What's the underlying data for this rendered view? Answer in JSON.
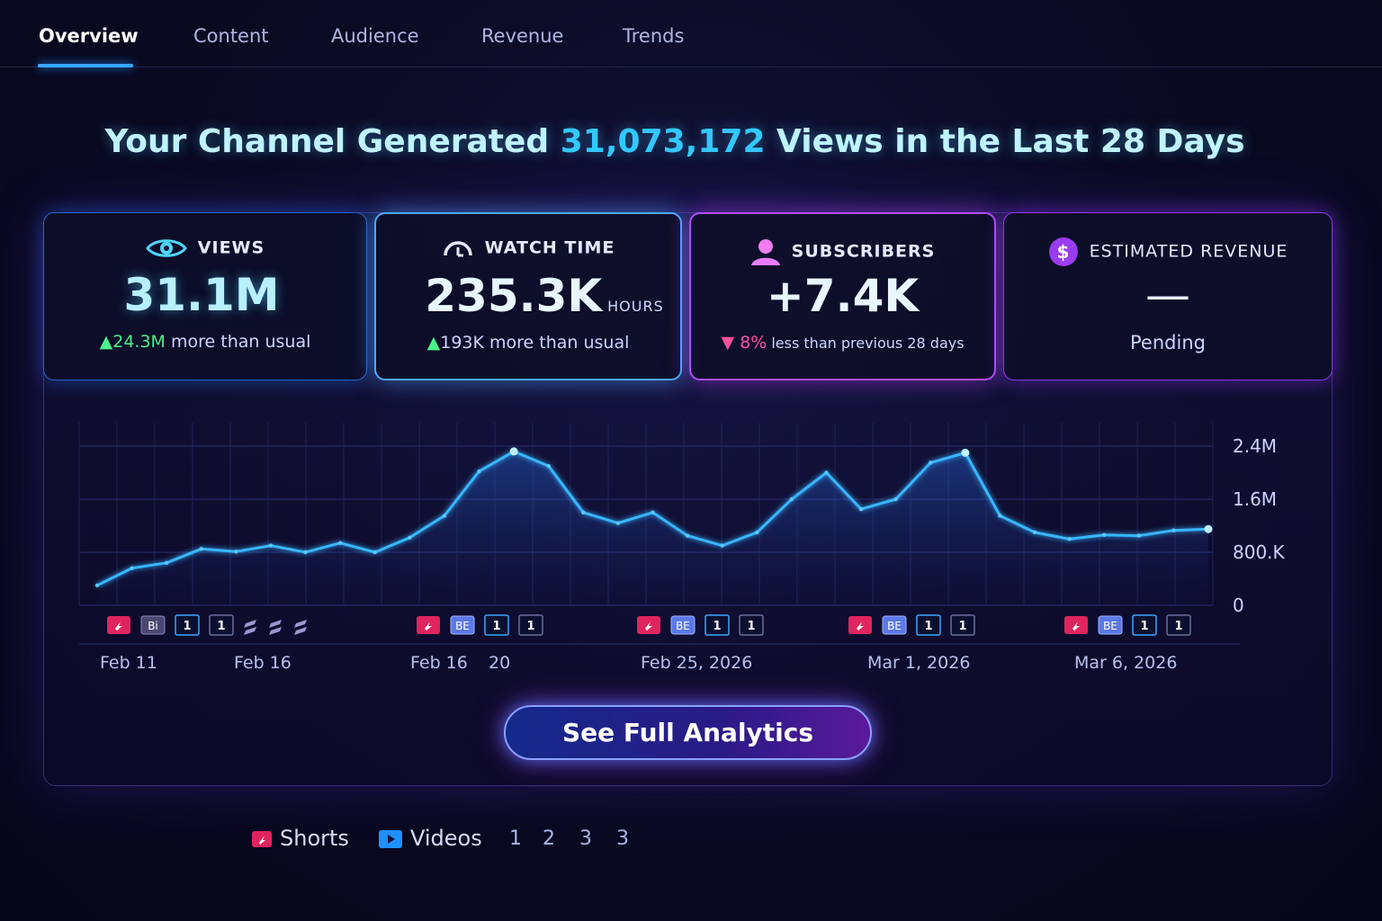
{
  "nav": {
    "tabs": [
      {
        "label": "Overview",
        "active": true
      },
      {
        "label": "Content",
        "active": false
      },
      {
        "label": "Audience",
        "active": false
      },
      {
        "label": "Revenue",
        "active": false
      },
      {
        "label": "Trends",
        "active": false
      }
    ]
  },
  "headline": {
    "prefix": "Your Channel Generated ",
    "views": "31,073,172",
    "suffix": " Views in the Last 28 Days"
  },
  "cards": {
    "views": {
      "icon": "eye-icon",
      "title": "VIEWS",
      "value": "31.1M",
      "delta_value": "24.3M",
      "delta_text": " more than usual",
      "delta_direction": "up"
    },
    "watch_time": {
      "icon": "gauge-icon",
      "title": "WATCH TIME",
      "value": "235.3K",
      "unit": "HOURS",
      "delta_value": "193K",
      "delta_text": " more than usual",
      "delta_direction": "up"
    },
    "subscribers": {
      "icon": "user-icon",
      "title": "SUBSCRIBERS",
      "value": "+7.4K",
      "delta_value": "8%",
      "delta_text": " less than previous 28 days",
      "delta_direction": "down"
    },
    "revenue": {
      "icon": "dollar-icon",
      "title": "ESTIMATED REVENUE",
      "value": "—",
      "status": "Pending"
    }
  },
  "chart_data": {
    "type": "line",
    "series": [
      {
        "name": "Views",
        "values": [
          300000,
          560000,
          640000,
          850000,
          810000,
          900000,
          800000,
          940000,
          800000,
          1020000,
          1350000,
          2020000,
          2320000,
          2100000,
          1400000,
          1240000,
          1400000,
          1050000,
          900000,
          1100000,
          1600000,
          2000000,
          1450000,
          1600000,
          2150000,
          2300000,
          1350000,
          1100000,
          1000000,
          1060000,
          1050000,
          1130000,
          1150000
        ]
      }
    ],
    "ylim": [
      0,
      2400000
    ],
    "yticks": [
      "2.4M",
      "1.6M",
      "800.K",
      "0"
    ],
    "ytick_values": [
      2400000,
      1600000,
      800000,
      0
    ],
    "xtick_labels": [
      "Feb 11",
      "Feb 16",
      "Feb 16",
      "20",
      "Feb 25, 2026",
      "Mar 1, 2026",
      "Mar 6, 2026"
    ],
    "grid": true,
    "upload_markers": [
      [
        "shorts",
        "bi",
        "1",
        "1",
        "stack",
        "stack",
        "stack"
      ],
      [
        "shorts",
        "be",
        "1",
        "1"
      ],
      [
        "shorts",
        "be",
        "1",
        "1"
      ],
      [
        "shorts",
        "be",
        "1",
        "1"
      ],
      [
        "shorts",
        "be",
        "1",
        "1"
      ]
    ],
    "marker_labels": {
      "bi": "Bi",
      "be": "BE",
      "one": "1"
    }
  },
  "cta": {
    "label": "See Full Analytics"
  },
  "legend": {
    "shorts": "Shorts",
    "videos": "Videos",
    "pages": [
      "1",
      "2",
      "3",
      "3"
    ]
  },
  "colors": {
    "accent": "#33c8ff",
    "line": "#38b6ff",
    "up": "#4cf08a",
    "down": "#ff4fa0",
    "shorts": "#e0245e",
    "videos": "#1e90ff",
    "purple": "#b04cff"
  }
}
